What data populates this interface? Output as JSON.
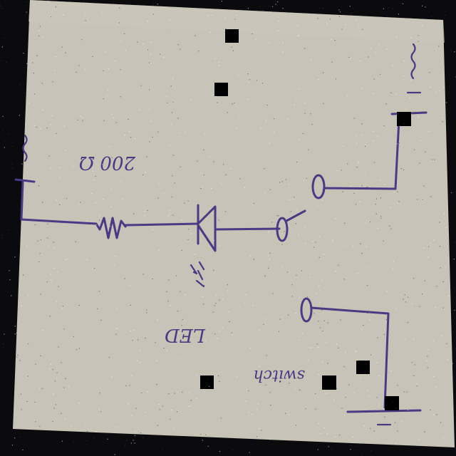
{
  "diagram": {
    "labels": {
      "resistor_value": "200 Ω",
      "led_label": "LED",
      "switch_label": "switch"
    },
    "colors": {
      "paper": "#c7c3b6",
      "ink": "#4a3a86",
      "background": "#0b0b0d"
    },
    "components": [
      "battery-positive-symbol",
      "resistor",
      "led-diode",
      "switch",
      "ground-symbol"
    ]
  }
}
